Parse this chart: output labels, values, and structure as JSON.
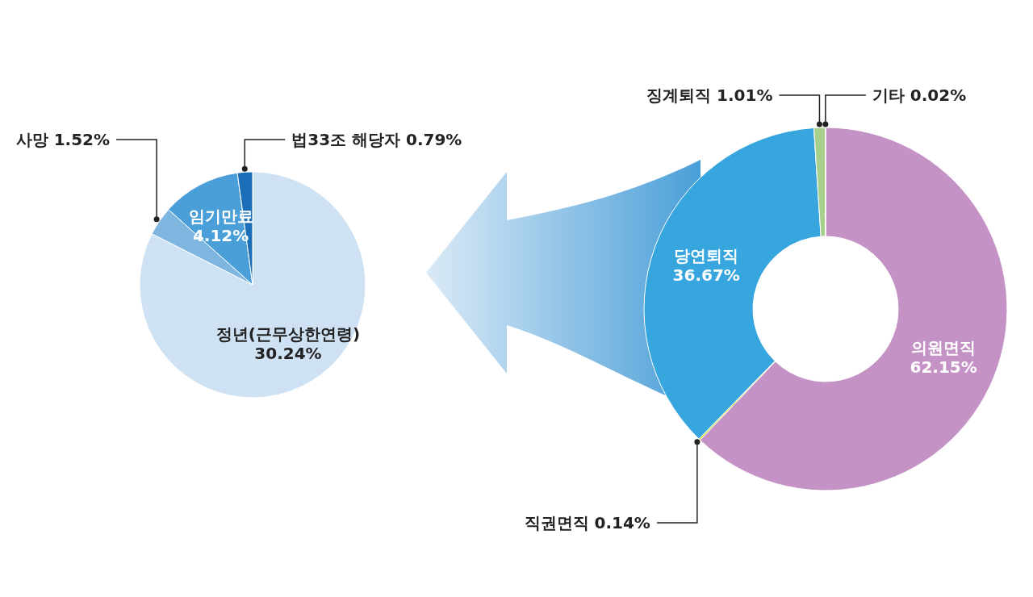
{
  "chart_data": [
    {
      "type": "pie",
      "categories": [
        "정년(근무상한연령)",
        "사망",
        "임기만료",
        "법33조 해당자"
      ],
      "values": [
        30.24,
        1.52,
        4.12,
        0.79
      ],
      "colors": [
        "#cfe2f3",
        "#7fb6e0",
        "#4a9fd8",
        "#1a6fb8"
      ],
      "value_labels": [
        "30.24%",
        "1.52%",
        "4.12%",
        "0.79%"
      ]
    },
    {
      "type": "donut",
      "categories": [
        "의원면직",
        "직권면직",
        "당연퇴직",
        "징계퇴직",
        "기타"
      ],
      "values": [
        62.15,
        0.14,
        36.67,
        1.01,
        0.02
      ],
      "colors": [
        "#c492c4",
        "#c8d630",
        "#38a6de",
        "#a8d08d",
        "#c0392b"
      ],
      "value_labels": [
        "62.15%",
        "0.14%",
        "36.67%",
        "1.01%",
        "0.02%"
      ]
    }
  ]
}
